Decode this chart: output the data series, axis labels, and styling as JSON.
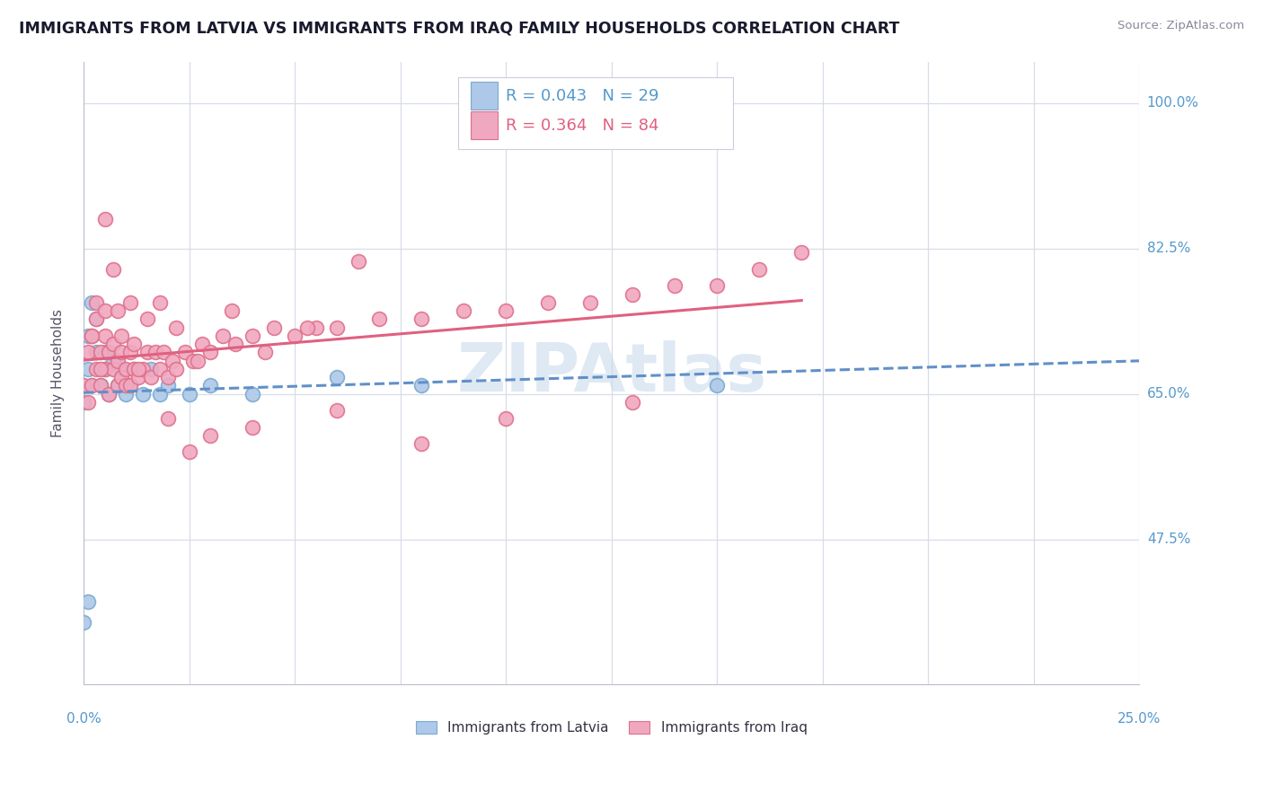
{
  "title": "IMMIGRANTS FROM LATVIA VS IMMIGRANTS FROM IRAQ FAMILY HOUSEHOLDS CORRELATION CHART",
  "source": "Source: ZipAtlas.com",
  "ylabel": "Family Households",
  "color_latvia": "#adc8e8",
  "color_latvia_edge": "#7aaad0",
  "color_iraq": "#f0a8c0",
  "color_iraq_edge": "#e0708a",
  "color_latvia_line": "#6090c8",
  "color_iraq_line": "#e06080",
  "watermark": "ZIPAtlas",
  "xmin": 0.0,
  "xmax": 0.25,
  "ymin": 0.3,
  "ymax": 1.05,
  "yticks": [
    0.475,
    0.65,
    0.825,
    1.0
  ],
  "ytick_labels": [
    "47.5%",
    "65.0%",
    "82.5%",
    "100.0%"
  ],
  "latvia_x": [
    0.0,
    0.001,
    0.001,
    0.002,
    0.002,
    0.003,
    0.003,
    0.004,
    0.005,
    0.005,
    0.006,
    0.007,
    0.008,
    0.009,
    0.01,
    0.011,
    0.012,
    0.014,
    0.016,
    0.018,
    0.02,
    0.025,
    0.03,
    0.04,
    0.06,
    0.08,
    0.15,
    0.0,
    0.001
  ],
  "latvia_y": [
    0.64,
    0.72,
    0.68,
    0.76,
    0.66,
    0.74,
    0.7,
    0.66,
    0.7,
    0.68,
    0.65,
    0.69,
    0.66,
    0.68,
    0.65,
    0.66,
    0.68,
    0.65,
    0.68,
    0.65,
    0.66,
    0.65,
    0.66,
    0.65,
    0.67,
    0.66,
    0.66,
    0.375,
    0.4
  ],
  "iraq_x": [
    0.0,
    0.001,
    0.001,
    0.002,
    0.002,
    0.003,
    0.003,
    0.004,
    0.004,
    0.005,
    0.005,
    0.006,
    0.006,
    0.007,
    0.007,
    0.008,
    0.008,
    0.009,
    0.009,
    0.01,
    0.01,
    0.011,
    0.011,
    0.012,
    0.012,
    0.013,
    0.014,
    0.015,
    0.016,
    0.017,
    0.018,
    0.019,
    0.02,
    0.021,
    0.022,
    0.024,
    0.026,
    0.028,
    0.03,
    0.033,
    0.036,
    0.04,
    0.045,
    0.05,
    0.055,
    0.06,
    0.07,
    0.08,
    0.09,
    0.1,
    0.11,
    0.12,
    0.13,
    0.14,
    0.15,
    0.16,
    0.17,
    0.002,
    0.003,
    0.004,
    0.005,
    0.007,
    0.009,
    0.011,
    0.013,
    0.015,
    0.018,
    0.022,
    0.027,
    0.035,
    0.043,
    0.053,
    0.065,
    0.1,
    0.13,
    0.04,
    0.06,
    0.08,
    0.02,
    0.025,
    0.03,
    0.005,
    0.008
  ],
  "iraq_y": [
    0.66,
    0.7,
    0.64,
    0.72,
    0.66,
    0.74,
    0.68,
    0.7,
    0.66,
    0.72,
    0.68,
    0.7,
    0.65,
    0.68,
    0.71,
    0.66,
    0.69,
    0.67,
    0.7,
    0.66,
    0.68,
    0.7,
    0.66,
    0.68,
    0.71,
    0.67,
    0.68,
    0.7,
    0.67,
    0.7,
    0.68,
    0.7,
    0.67,
    0.69,
    0.68,
    0.7,
    0.69,
    0.71,
    0.7,
    0.72,
    0.71,
    0.72,
    0.73,
    0.72,
    0.73,
    0.73,
    0.74,
    0.74,
    0.75,
    0.75,
    0.76,
    0.76,
    0.77,
    0.78,
    0.78,
    0.8,
    0.82,
    0.72,
    0.76,
    0.68,
    0.75,
    0.8,
    0.72,
    0.76,
    0.68,
    0.74,
    0.76,
    0.73,
    0.69,
    0.75,
    0.7,
    0.73,
    0.81,
    0.62,
    0.64,
    0.61,
    0.63,
    0.59,
    0.62,
    0.58,
    0.6,
    0.86,
    0.75
  ]
}
